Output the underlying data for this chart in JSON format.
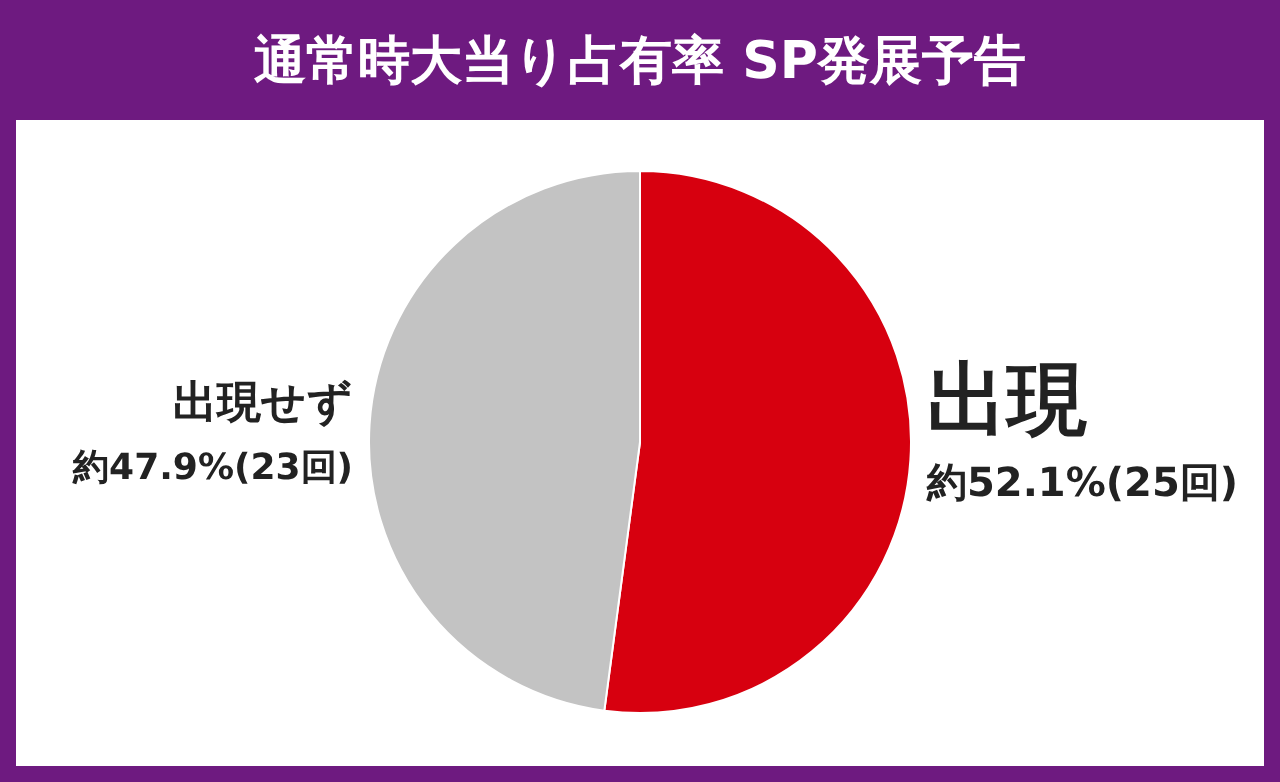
{
  "chart_data": {
    "type": "pie",
    "title": "通常時大当り占有率 SP発展予告",
    "categories": [
      "出現",
      "出現せず"
    ],
    "values": [
      52.1,
      47.9
    ],
    "colors": [
      "#d7000f",
      "#c3c3c3"
    ],
    "value_labels": [
      "約52.1%(25回)",
      "約47.9%(23回)"
    ],
    "legend": false
  }
}
